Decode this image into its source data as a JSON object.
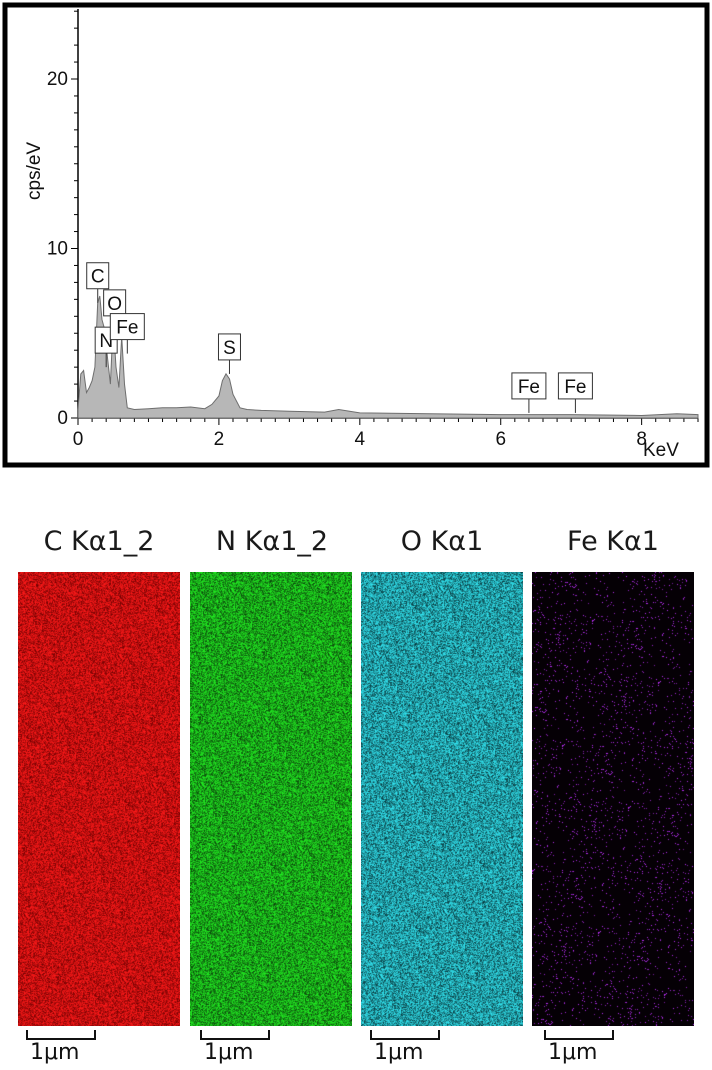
{
  "chart_data": [
    {
      "type": "area",
      "ylabel": "cps/eV",
      "xlabel": "KeV",
      "xlim": [
        0,
        8.8
      ],
      "ylim": [
        0,
        24
      ],
      "x_ticks": [
        "0",
        "2",
        "4",
        "6",
        "8"
      ],
      "y_ticks": [
        "0",
        "10",
        "20"
      ],
      "grid": false,
      "series_color": "#a9a9a9",
      "x": [
        0.0,
        0.04,
        0.08,
        0.12,
        0.16,
        0.2,
        0.24,
        0.28,
        0.31,
        0.34,
        0.38,
        0.42,
        0.46,
        0.5,
        0.54,
        0.58,
        0.62,
        0.66,
        0.7,
        0.8,
        1.0,
        1.2,
        1.4,
        1.6,
        1.8,
        1.9,
        2.0,
        2.05,
        2.1,
        2.15,
        2.2,
        2.3,
        2.4,
        2.6,
        3.0,
        3.5,
        3.7,
        4.0,
        5.0,
        6.0,
        7.0,
        8.0,
        8.5,
        8.8
      ],
      "y": [
        0.5,
        2.6,
        2.8,
        1.5,
        1.8,
        2.2,
        3.0,
        6.8,
        7.2,
        5.8,
        5.2,
        3.5,
        2.0,
        5.7,
        3.0,
        1.8,
        4.8,
        2.0,
        0.6,
        0.5,
        0.55,
        0.6,
        0.6,
        0.65,
        0.55,
        0.8,
        1.3,
        2.2,
        2.6,
        2.3,
        1.4,
        0.6,
        0.5,
        0.45,
        0.4,
        0.35,
        0.5,
        0.3,
        0.25,
        0.2,
        0.2,
        0.15,
        0.25,
        0.2
      ],
      "peak_labels": [
        {
          "label": "C",
          "x": 0.28,
          "y": 6.8
        },
        {
          "label": "N",
          "x": 0.4,
          "y": 3.0
        },
        {
          "label": "O",
          "x": 0.52,
          "y": 5.2
        },
        {
          "label": "Fe",
          "x": 0.7,
          "y": 3.8
        },
        {
          "label": "S",
          "x": 2.15,
          "y": 2.6
        },
        {
          "label": "Fe",
          "x": 6.4,
          "y": 0.3
        },
        {
          "label": "Fe",
          "x": 7.06,
          "y": 0.3
        }
      ]
    }
  ],
  "maps": [
    {
      "title": "C Kα1_2",
      "color": "#ff1a1a",
      "background": "#6a0000",
      "scale_label": "1μm"
    },
    {
      "title": "N Kα1_2",
      "color": "#22ee22",
      "background": "#0a3a0a",
      "scale_label": "1μm"
    },
    {
      "title": "O Kα1",
      "color": "#33e6f2",
      "background": "#062f33",
      "scale_label": "1μm"
    },
    {
      "title": "Fe Kα1",
      "color": "#c030ff",
      "background": "#050005",
      "scale_label": "1μm"
    }
  ]
}
